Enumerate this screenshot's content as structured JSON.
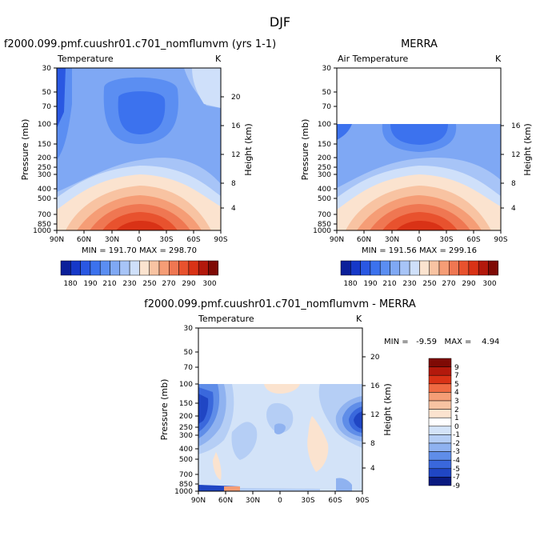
{
  "figure_title": "DJF",
  "chart_data": [
    {
      "type": "contour",
      "title": "f2000.099.pmf.cuushr01.c701_nomflumvm (yrs 1-1)",
      "subtitle_left": "Temperature",
      "subtitle_right": "K",
      "xlabel": "",
      "ylabel": "Pressure (mb)",
      "ylabel_right": "Height (km)",
      "x_ticks": [
        "90N",
        "60N",
        "30N",
        "0",
        "30S",
        "60S",
        "90S"
      ],
      "y_ticks": [
        "30",
        "50",
        "70",
        "100",
        "150",
        "200",
        "250",
        "300",
        "400",
        "500",
        "700",
        "850",
        "1000"
      ],
      "y2_ticks": [
        "20",
        "16",
        "12",
        "8",
        "4"
      ],
      "stats": "MIN = 191.70   MAX = 298.70",
      "colorbar_labels": [
        "180",
        "190",
        "210",
        "230",
        "250",
        "270",
        "290",
        "300"
      ],
      "field_range_K": [
        191.7,
        298.7
      ]
    },
    {
      "type": "contour",
      "title": "MERRA",
      "subtitle_left": "Air Temperature",
      "subtitle_right": "K",
      "xlabel": "",
      "ylabel": "Pressure (mb)",
      "ylabel_right": "Height (km)",
      "x_ticks": [
        "90N",
        "60N",
        "30N",
        "0",
        "30S",
        "60S",
        "90S"
      ],
      "y_ticks": [
        "30",
        "50",
        "70",
        "100",
        "150",
        "200",
        "250",
        "300",
        "400",
        "500",
        "700",
        "850",
        "1000"
      ],
      "y2_ticks": [
        "16",
        "12",
        "8",
        "4"
      ],
      "stats": "MIN = 191.56   MAX = 299.16",
      "colorbar_labels": [
        "180",
        "190",
        "210",
        "230",
        "250",
        "270",
        "290",
        "300"
      ],
      "field_range_K": [
        191.56,
        299.16
      ],
      "data_top_mb": 100
    },
    {
      "type": "contour",
      "title": "f2000.099.pmf.cuushr01.c701_nomflumvm - MERRA",
      "subtitle_left": "Temperature",
      "subtitle_right": "K",
      "xlabel": "",
      "ylabel": "Pressure (mb)",
      "ylabel_right": "Height (km)",
      "x_ticks": [
        "90N",
        "60N",
        "30N",
        "0",
        "30S",
        "60S",
        "90S"
      ],
      "y_ticks": [
        "30",
        "50",
        "70",
        "100",
        "150",
        "200",
        "250",
        "300",
        "400",
        "500",
        "700",
        "850",
        "1000"
      ],
      "y2_ticks": [
        "20",
        "16",
        "12",
        "8",
        "4"
      ],
      "stats": "MIN =   -9.59   MAX =    4.94",
      "colorbar_labels": [
        "9",
        "7",
        "5",
        "4",
        "3",
        "2",
        "1",
        "0",
        "-1",
        "-2",
        "-3",
        "-4",
        "-5",
        "-7",
        "-9"
      ],
      "field_range_K": [
        -9.59,
        4.94
      ],
      "data_top_mb": 100
    }
  ],
  "colors": {
    "temp_scale": [
      "#0b1f9a",
      "#1638c8",
      "#2a58e2",
      "#3c72ee",
      "#5b8ef2",
      "#7fa8f4",
      "#a7c4f7",
      "#cfe0fa",
      "#fbe3cf",
      "#f8c3a2",
      "#f59d76",
      "#ef7752",
      "#e8522e",
      "#d93216",
      "#b3190c",
      "#7f0a05"
    ],
    "diff_scale": [
      "#7f0a05",
      "#b3190c",
      "#d93216",
      "#ef6a42",
      "#f59d76",
      "#f8c3a2",
      "#fbe3cf",
      "#d3e3f8",
      "#b5cef5",
      "#8fb2f0",
      "#5f8de8",
      "#3a68dc",
      "#2046c4",
      "#0f2aa8",
      "#0a1a80"
    ]
  }
}
